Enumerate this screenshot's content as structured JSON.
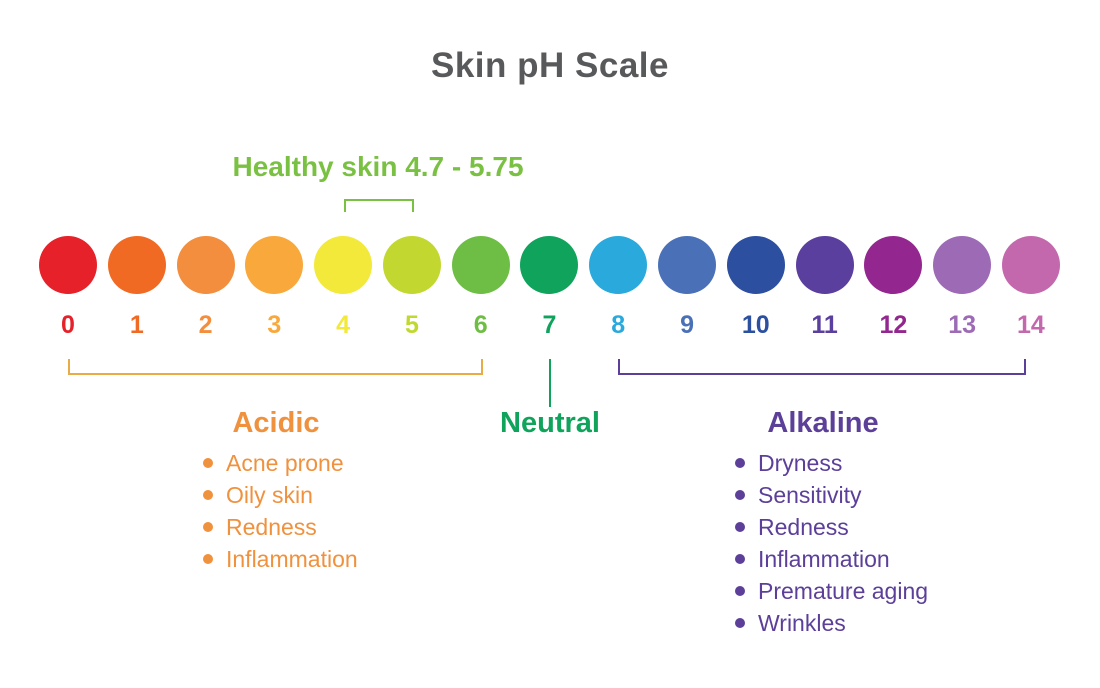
{
  "title": "Skin pH Scale",
  "title_color": "#58595b",
  "healthy_range": {
    "label": "Healthy skin 4.7 - 5.75",
    "color": "#7ac143"
  },
  "ph_scale": [
    {
      "value": "0",
      "color": "#e62129"
    },
    {
      "value": "1",
      "color": "#f16a23"
    },
    {
      "value": "2",
      "color": "#f28e3d"
    },
    {
      "value": "3",
      "color": "#f9a83c"
    },
    {
      "value": "4",
      "color": "#f2e93b"
    },
    {
      "value": "5",
      "color": "#c2d830"
    },
    {
      "value": "6",
      "color": "#6ebe45"
    },
    {
      "value": "7",
      "color": "#10a35c"
    },
    {
      "value": "8",
      "color": "#29a9dc"
    },
    {
      "value": "9",
      "color": "#4a71b8"
    },
    {
      "value": "10",
      "color": "#2c4fa0"
    },
    {
      "value": "11",
      "color": "#5a3f9e"
    },
    {
      "value": "12",
      "color": "#93278f"
    },
    {
      "value": "13",
      "color": "#9d6ab5"
    },
    {
      "value": "14",
      "color": "#c468ae"
    }
  ],
  "groups": {
    "acidic": {
      "label": "Acidic",
      "color": "#f0913e",
      "bracket_color": "#e8ab45",
      "items": [
        "Acne prone",
        "Oily skin",
        "Redness",
        "Inflammation"
      ]
    },
    "neutral": {
      "label": "Neutral",
      "color": "#10a35c"
    },
    "alkaline": {
      "label": "Alkaline",
      "color": "#5b3f99",
      "bracket_color": "#5b3f99",
      "items": [
        "Dryness",
        "Sensitivity",
        "Redness",
        "Inflammation",
        "Premature aging",
        "Wrinkles"
      ]
    }
  }
}
